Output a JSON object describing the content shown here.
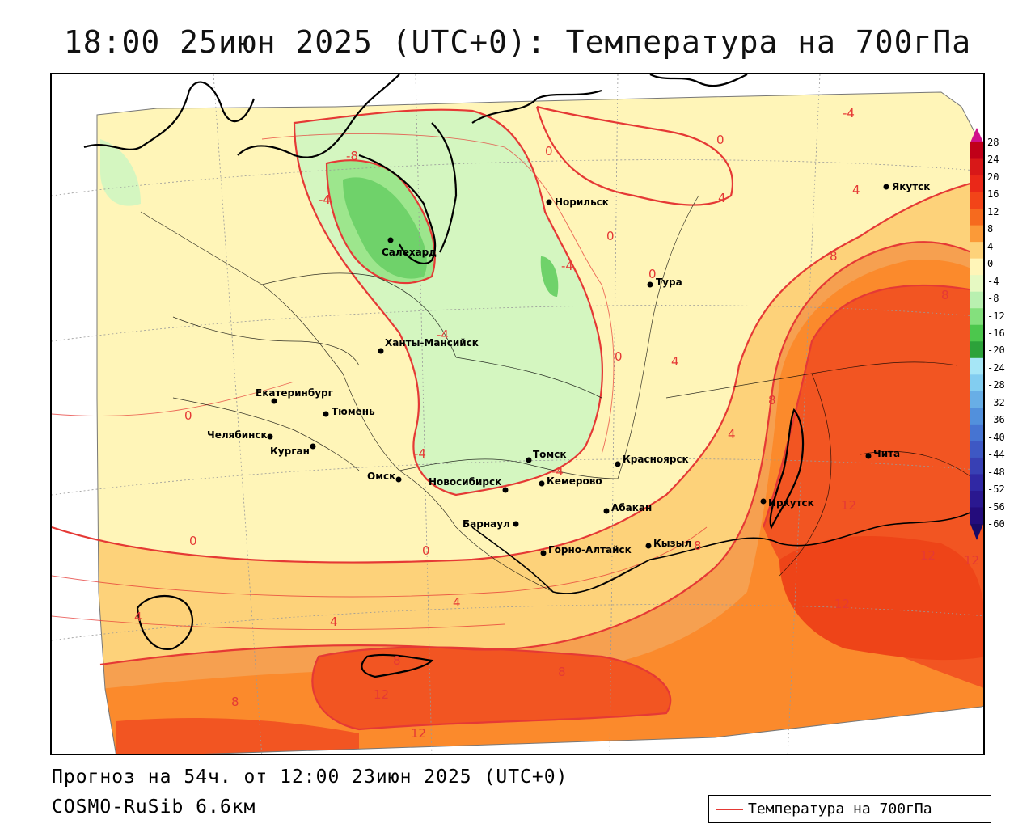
{
  "title": "18:00 25июн 2025 (UTC+0): Температура на 700гПа",
  "footer": {
    "forecast": "Прогноз на 54ч. от 12:00 23июн 2025 (UTC+0)",
    "model": "COSMO-RuSib 6.6км"
  },
  "legend": {
    "label": "Температура на 700гПа",
    "color": "#e53935"
  },
  "colorbar": {
    "labels": [
      "28",
      "24",
      "20",
      "16",
      "12",
      "8",
      "4",
      "0",
      "-4",
      "-8",
      "-12",
      "-16",
      "-20",
      "-24",
      "-28",
      "-32",
      "-36",
      "-40",
      "-44",
      "-48",
      "-52",
      "-56",
      "-60"
    ],
    "colors": [
      "#c00018",
      "#d81818",
      "#ea2818",
      "#f24418",
      "#f66a1e",
      "#fb9a38",
      "#fdd27a",
      "#fff5b8",
      "#e6f9c2",
      "#b9f0b0",
      "#84e07d",
      "#4cc74d",
      "#2ca23a",
      "#a6e6f6",
      "#82cdf0",
      "#68aee6",
      "#5290dc",
      "#4674d2",
      "#3e58c4",
      "#3840b4",
      "#3028a4",
      "#2a1890",
      "#240c7c"
    ]
  },
  "cities": [
    {
      "name": "Норильск"
    },
    {
      "name": "Якутск"
    },
    {
      "name": "Салехард"
    },
    {
      "name": "Тура"
    },
    {
      "name": "Ханты-Мансийск"
    },
    {
      "name": "Екатеринбург"
    },
    {
      "name": "Тюмень"
    },
    {
      "name": "Челябинск"
    },
    {
      "name": "Курган"
    },
    {
      "name": "Омск"
    },
    {
      "name": "Томск"
    },
    {
      "name": "Красноярск"
    },
    {
      "name": "Новосибирск"
    },
    {
      "name": "Кемерово"
    },
    {
      "name": "Чита"
    },
    {
      "name": "Абакан"
    },
    {
      "name": "Иркутск"
    },
    {
      "name": "Барнаул"
    },
    {
      "name": "Кызыл"
    },
    {
      "name": "Горно-Алтайск"
    }
  ],
  "contour_labels": [
    "-4",
    "-8",
    "-4",
    "0",
    "0",
    "4",
    "4",
    "0",
    "-4",
    "0",
    "4",
    "-4",
    "0",
    "0",
    "0",
    "4",
    "-4",
    "-4",
    "0",
    "4",
    "8",
    "8",
    "8",
    "8",
    "12",
    "12",
    "12",
    "12",
    "4",
    "4",
    "8",
    "8",
    "12",
    "12",
    "8"
  ]
}
